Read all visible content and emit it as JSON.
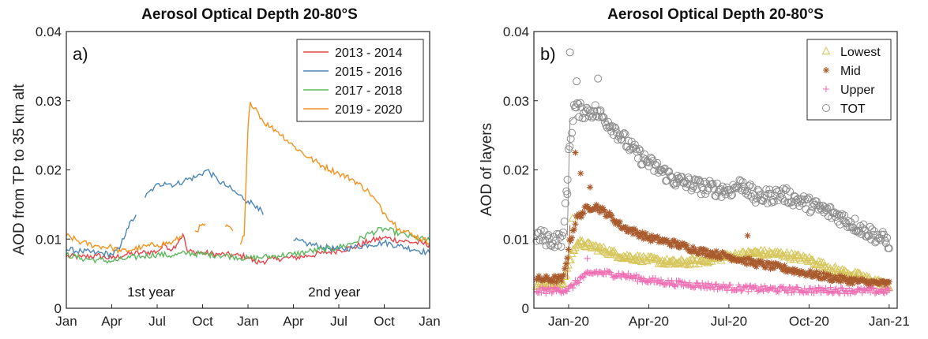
{
  "chart_data": [
    {
      "type": "line",
      "panel_label": "a)",
      "title": "Aerosol Optical Depth 20-80°S",
      "xlabel": "",
      "ylabel": "AOD from TP to 35 km alt",
      "ylim": [
        0,
        0.04
      ],
      "y_ticks": [
        "0",
        "0.01",
        "0.02",
        "0.03",
        "0.04"
      ],
      "x_months_range": [
        0,
        24
      ],
      "x_ticks": [
        {
          "m": 0,
          "label": "Jan"
        },
        {
          "m": 3,
          "label": "Apr"
        },
        {
          "m": 6,
          "label": "Jul"
        },
        {
          "m": 9,
          "label": "Oct"
        },
        {
          "m": 12,
          "label": "Jan"
        },
        {
          "m": 15,
          "label": "Apr"
        },
        {
          "m": 18,
          "label": "Jul"
        },
        {
          "m": 21,
          "label": "Oct"
        },
        {
          "m": 24,
          "label": "Jan"
        }
      ],
      "annotations": [
        {
          "text": "1st year",
          "m": 5.6,
          "y": 0.0017
        },
        {
          "text": "2nd year",
          "m": 17.7,
          "y": 0.0017
        }
      ],
      "legend_position": "top-right",
      "series": [
        {
          "name": "2013 - 2014",
          "color": "#e8434a",
          "segments": [
            [
              [
                0,
                0.0075
              ],
              [
                1,
                0.0074
              ],
              [
                2,
                0.0076
              ],
              [
                3,
                0.0072
              ],
              [
                4,
                0.0078
              ],
              [
                5,
                0.008
              ],
              [
                6,
                0.0082
              ],
              [
                6.5,
                0.0092
              ],
              [
                7,
                0.0085
              ],
              [
                7.7,
                0.0107
              ],
              [
                8,
                0.0082
              ],
              [
                9,
                0.008
              ],
              [
                10,
                0.0078
              ],
              [
                11,
                0.0077
              ],
              [
                12,
                0.0074
              ],
              [
                12.5,
                0.0066
              ],
              [
                13,
                0.0068
              ],
              [
                14,
                0.0072
              ],
              [
                15,
                0.0073
              ],
              [
                16,
                0.0076
              ],
              [
                17,
                0.008
              ],
              [
                18,
                0.0084
              ],
              [
                19,
                0.0088
              ],
              [
                20,
                0.0097
              ],
              [
                21,
                0.0102
              ],
              [
                22,
                0.0098
              ],
              [
                23,
                0.0095
              ],
              [
                24,
                0.0092
              ]
            ]
          ]
        },
        {
          "name": "2015 - 2016",
          "color": "#4c86b6",
          "segments": [
            [
              [
                0,
                0.0085
              ],
              [
                1,
                0.0082
              ],
              [
                2,
                0.008
              ],
              [
                3,
                0.0078
              ],
              [
                3.5,
                0.0085
              ],
              [
                4,
                0.0115
              ],
              [
                4.6,
                0.0135
              ]
            ],
            [
              [
                5.2,
                0.016
              ],
              [
                5.8,
                0.0175
              ],
              [
                6.5,
                0.0182
              ],
              [
                7.2,
                0.0178
              ],
              [
                7.8,
                0.0185
              ],
              [
                8.6,
                0.019
              ],
              [
                9.3,
                0.02
              ],
              [
                10,
                0.0185
              ],
              [
                10.7,
                0.0175
              ],
              [
                11.3,
                0.0165
              ],
              [
                12,
                0.0155
              ],
              [
                12.6,
                0.0148
              ],
              [
                13,
                0.0135
              ]
            ],
            [
              [
                15,
                0.0098
              ],
              [
                16,
                0.0093
              ],
              [
                17,
                0.0088
              ],
              [
                18,
                0.0085
              ],
              [
                19,
                0.0088
              ],
              [
                20,
                0.0092
              ],
              [
                21,
                0.0095
              ],
              [
                22,
                0.009
              ],
              [
                23,
                0.0085
              ],
              [
                24,
                0.008
              ]
            ]
          ]
        },
        {
          "name": "2017 - 2018",
          "color": "#5cb85c",
          "segments": [
            [
              [
                0,
                0.0078
              ],
              [
                1,
                0.0072
              ],
              [
                2,
                0.007
              ],
              [
                3,
                0.0068
              ],
              [
                4,
                0.0072
              ],
              [
                5,
                0.0075
              ],
              [
                6,
                0.0078
              ],
              [
                7,
                0.0076
              ],
              [
                8,
                0.008
              ],
              [
                9,
                0.0078
              ],
              [
                10,
                0.0077
              ],
              [
                11,
                0.0075
              ],
              [
                12,
                0.0072
              ],
              [
                13,
                0.0074
              ],
              [
                14,
                0.0076
              ],
              [
                15,
                0.0078
              ],
              [
                16,
                0.0082
              ],
              [
                17,
                0.0085
              ],
              [
                18,
                0.0088
              ],
              [
                19,
                0.0095
              ],
              [
                20,
                0.0108
              ],
              [
                21,
                0.0115
              ],
              [
                22,
                0.0108
              ],
              [
                23,
                0.0102
              ],
              [
                24,
                0.0098
              ]
            ]
          ]
        },
        {
          "name": "2019 - 2020",
          "color": "#f5921e",
          "segments": [
            [
              [
                0,
                0.0105
              ],
              [
                1,
                0.0095
              ],
              [
                2,
                0.009
              ],
              [
                3,
                0.0088
              ],
              [
                3.6,
                0.0082
              ],
              [
                4.4,
                0.0085
              ],
              [
                5,
                0.0088
              ],
              [
                6,
                0.0092
              ],
              [
                7,
                0.0095
              ],
              [
                7.7,
                0.0105
              ]
            ],
            [
              [
                8.5,
                0.0112
              ],
              [
                9.2,
                0.0122
              ]
            ],
            [
              [
                10.5,
                0.0118
              ],
              [
                11,
                0.0112
              ]
            ],
            [
              [
                11.5,
                0.0092
              ],
              [
                11.75,
                0.0105
              ],
              [
                12,
                0.026
              ],
              [
                12.15,
                0.0298
              ],
              [
                12.5,
                0.029
              ],
              [
                13,
                0.027
              ],
              [
                13.5,
                0.0262
              ],
              [
                14,
                0.0255
              ],
              [
                15,
                0.0235
              ],
              [
                16,
                0.0218
              ],
              [
                17,
                0.0205
              ],
              [
                18,
                0.0195
              ],
              [
                19,
                0.0185
              ],
              [
                20,
                0.0168
              ],
              [
                21,
                0.0138
              ],
              [
                22,
                0.0115
              ],
              [
                23,
                0.0105
              ],
              [
                24,
                0.0095
              ]
            ]
          ]
        }
      ]
    },
    {
      "type": "scatter",
      "panel_label": "b)",
      "title": "Aerosol Optical Depth 20-80°S",
      "xlabel": "",
      "ylabel": "AOD of layers",
      "ylim": [
        0,
        0.04
      ],
      "y_ticks": [
        "0",
        "0.01",
        "0.02",
        "0.03",
        "0.04"
      ],
      "x_months_range": [
        -1.3,
        12.3
      ],
      "x_ticks": [
        {
          "m": 0,
          "label": "Jan-20"
        },
        {
          "m": 3,
          "label": "Apr-20"
        },
        {
          "m": 6,
          "label": "Jul-20"
        },
        {
          "m": 9,
          "label": "Oct-20"
        },
        {
          "m": 12,
          "label": "Jan-21"
        }
      ],
      "legend_position": "top-right",
      "x_span_months": [
        -1.2,
        12.0
      ],
      "series": [
        {
          "name": "Lowest",
          "marker": "triangle",
          "color": "#d6c65a",
          "curve": [
            [
              -1.2,
              0.0035
            ],
            [
              -0.2,
              0.0035
            ],
            [
              0,
              0.0065
            ],
            [
              0.3,
              0.0095
            ],
            [
              1,
              0.0088
            ],
            [
              2,
              0.0075
            ],
            [
              3,
              0.007
            ],
            [
              4,
              0.0065
            ],
            [
              5,
              0.0068
            ],
            [
              6,
              0.0075
            ],
            [
              7,
              0.008
            ],
            [
              8,
              0.0078
            ],
            [
              9,
              0.007
            ],
            [
              10,
              0.0055
            ],
            [
              11,
              0.0045
            ],
            [
              12,
              0.0032
            ]
          ],
          "peaks": [
            [
              0.15,
              0.013
            ]
          ]
        },
        {
          "name": "Mid",
          "marker": "asterisk",
          "color": "#a95a2c",
          "curve": [
            [
              -1.2,
              0.0042
            ],
            [
              -0.2,
              0.0042
            ],
            [
              0,
              0.009
            ],
            [
              0.3,
              0.013
            ],
            [
              0.7,
              0.0145
            ],
            [
              1,
              0.0148
            ],
            [
              1.5,
              0.0135
            ],
            [
              2,
              0.0118
            ],
            [
              3,
              0.0102
            ],
            [
              4,
              0.0093
            ],
            [
              5,
              0.0082
            ],
            [
              6,
              0.0075
            ],
            [
              7,
              0.0065
            ],
            [
              8,
              0.0058
            ],
            [
              9,
              0.005
            ],
            [
              10,
              0.0043
            ],
            [
              11,
              0.0038
            ],
            [
              12,
              0.0035
            ]
          ],
          "peaks": [
            [
              0.25,
              0.0225
            ],
            [
              0.45,
              0.0195
            ],
            [
              0.8,
              0.0175
            ],
            [
              6.7,
              0.0105
            ]
          ]
        },
        {
          "name": "Upper",
          "marker": "plus",
          "color": "#ef6fb4",
          "curve": [
            [
              -1.2,
              0.0025
            ],
            [
              0,
              0.0027
            ],
            [
              0.5,
              0.0045
            ],
            [
              1,
              0.0052
            ],
            [
              2,
              0.0048
            ],
            [
              3,
              0.004
            ],
            [
              4,
              0.0036
            ],
            [
              5,
              0.0033
            ],
            [
              6,
              0.003
            ],
            [
              7,
              0.0028
            ],
            [
              8,
              0.0027
            ],
            [
              9,
              0.0026
            ],
            [
              10,
              0.0026
            ],
            [
              11,
              0.0025
            ],
            [
              12,
              0.0025
            ]
          ],
          "peaks": [
            [
              0.7,
              0.0072
            ]
          ]
        },
        {
          "name": "TOT",
          "marker": "circle",
          "color": "#8c8c8c",
          "curve": [
            [
              -1.2,
              0.0105
            ],
            [
              -0.6,
              0.0098
            ],
            [
              -0.2,
              0.01
            ],
            [
              0,
              0.022
            ],
            [
              0.2,
              0.029
            ],
            [
              0.5,
              0.0285
            ],
            [
              1,
              0.0285
            ],
            [
              1.6,
              0.0265
            ],
            [
              2.5,
              0.0225
            ],
            [
              3,
              0.021
            ],
            [
              4,
              0.0185
            ],
            [
              5,
              0.0175
            ],
            [
              6,
              0.017
            ],
            [
              6.5,
              0.018
            ],
            [
              7,
              0.016
            ],
            [
              8,
              0.0165
            ],
            [
              9,
              0.015
            ],
            [
              10,
              0.0135
            ],
            [
              11,
              0.0115
            ],
            [
              12,
              0.0095
            ]
          ],
          "peaks": [
            [
              0.05,
              0.037
            ],
            [
              0.3,
              0.0328
            ],
            [
              1.1,
              0.0332
            ],
            [
              -0.05,
              0.0165
            ]
          ]
        }
      ]
    }
  ]
}
